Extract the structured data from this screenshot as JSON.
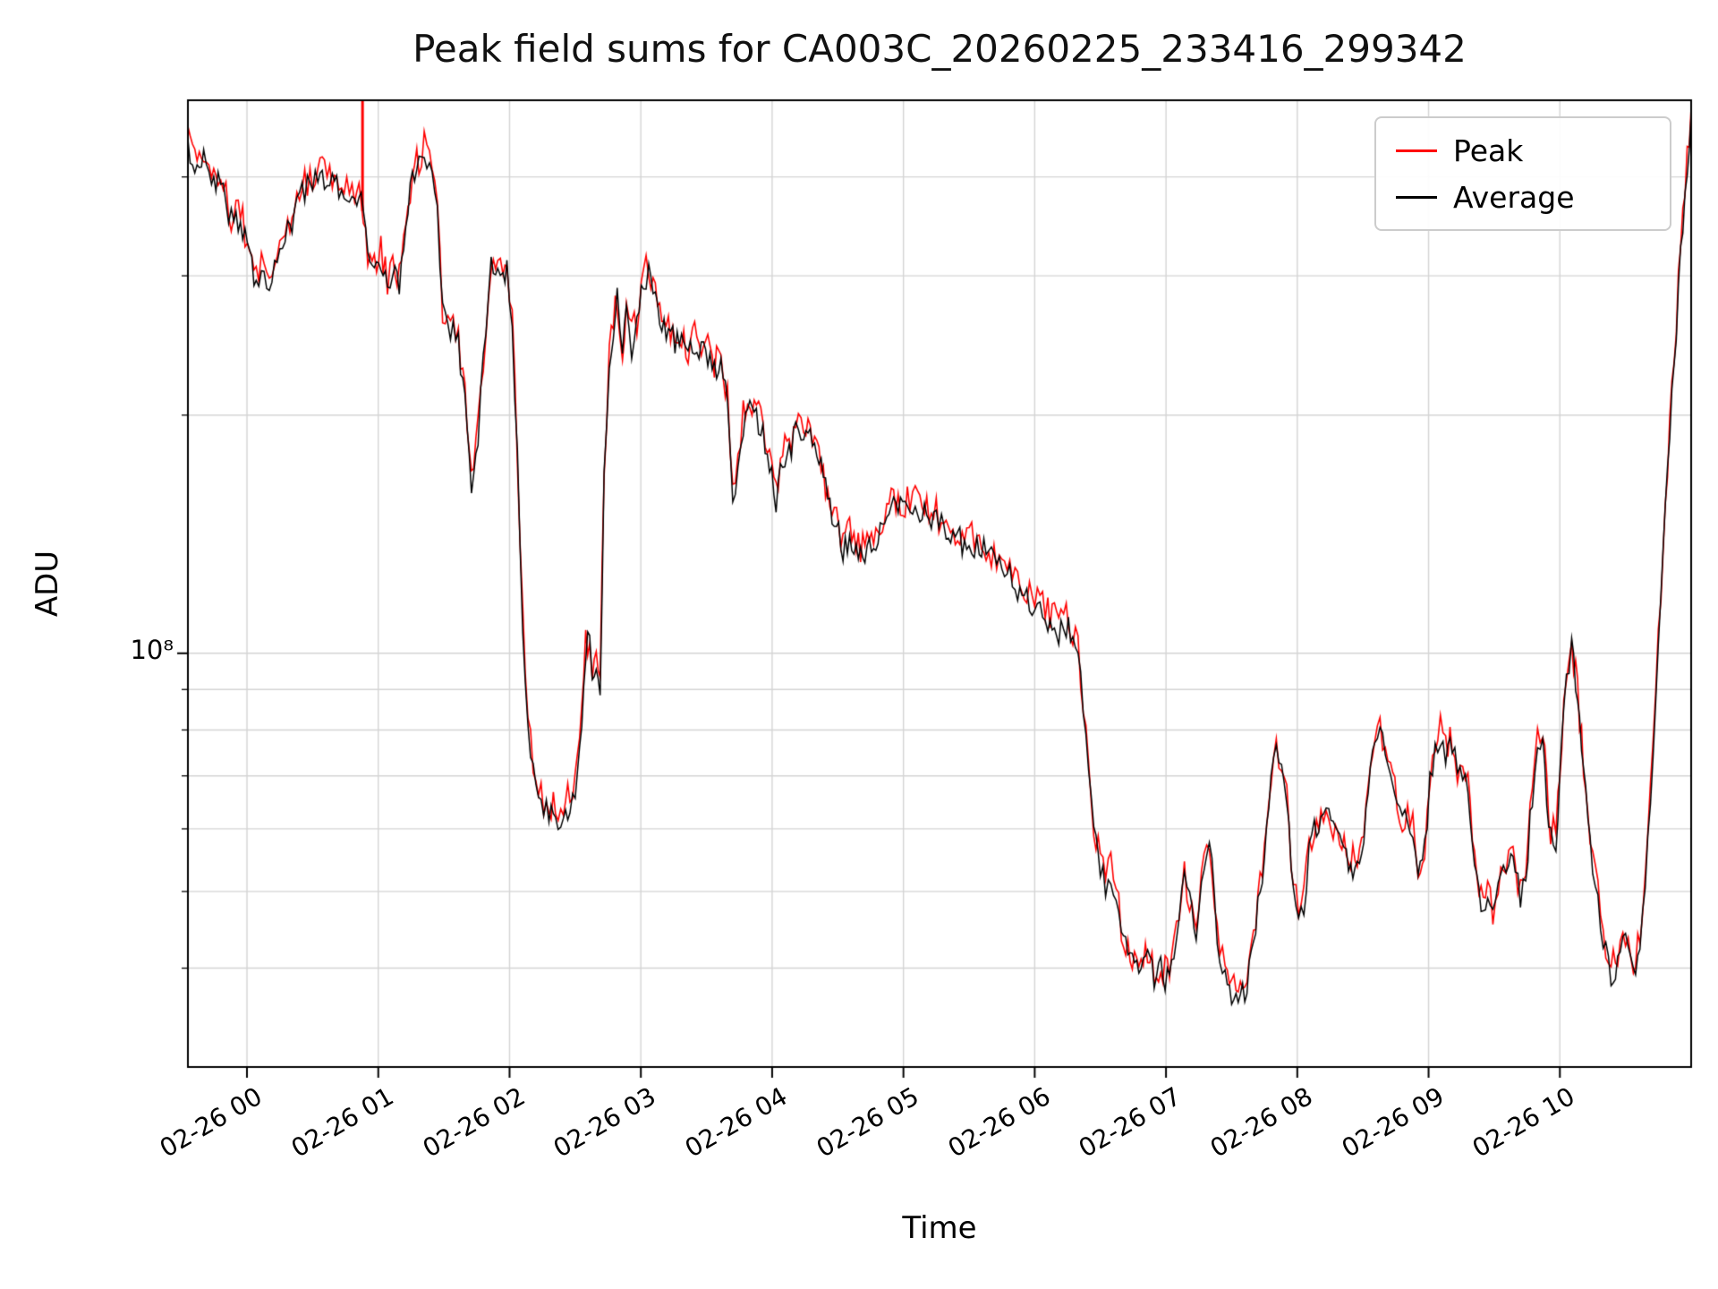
{
  "title": "Peak field sums for CA003C_20260225_233416_299342",
  "axes": {
    "x_label": "Time",
    "y_label": "ADU",
    "y_tick_label": "10⁸"
  },
  "legend": {
    "position": "upper right",
    "items": [
      {
        "label": "Peak",
        "color": "#ff0000"
      },
      {
        "label": "Average",
        "color": "#000000"
      }
    ]
  },
  "chart_data": {
    "type": "line",
    "title": "Peak field sums for CA003C_20260225_233416_299342",
    "xlabel": "Time",
    "ylabel": "ADU",
    "y_scale": "log",
    "ylim": [
      30000000.0,
      500000000.0
    ],
    "xlim_hours": [
      -0.45,
      11.0
    ],
    "x_axis_note": "hours relative to 2026-02-26 00:00",
    "x_tick_hours": [
      0,
      1,
      2,
      3,
      4,
      5,
      6,
      7,
      8,
      9,
      10
    ],
    "x_tick_labels": [
      "02-26 00",
      "02-26 01",
      "02-26 02",
      "02-26 03",
      "02-26 04",
      "02-26 05",
      "02-26 06",
      "02-26 07",
      "02-26 08",
      "02-26 09",
      "02-26 10"
    ],
    "y_tick_labels": [
      {
        "value": 100000000.0,
        "label": "10⁸"
      }
    ],
    "grid": true,
    "grid_color": "#d4d4d4",
    "grid_y_values": [
      40000000.0,
      50000000.0,
      60000000.0,
      70000000.0,
      80000000.0,
      90000000.0,
      100000000.0,
      200000000.0,
      300000000.0,
      400000000.0
    ],
    "legend_position": "upper right",
    "noise": {
      "amplitude_ratio": 0.04,
      "note": "high-frequency jitter visible on both traces"
    },
    "series": [
      {
        "name": "Peak",
        "color": "#ff0000",
        "derived": "Average values times multiplier (traces nearly overlap, red slightly above)",
        "multiplier": 1.02,
        "spike": {
          "x_hours": 0.88,
          "y": 500000000.0
        }
      },
      {
        "name": "Average",
        "color": "#000000",
        "points": [
          [
            -0.45,
            440000000.0
          ],
          [
            -0.38,
            410000000.0
          ],
          [
            -0.33,
            425000000.0
          ],
          [
            -0.27,
            385000000.0
          ],
          [
            -0.22,
            400000000.0
          ],
          [
            -0.16,
            370000000.0
          ],
          [
            -0.1,
            345000000.0
          ],
          [
            -0.05,
            355000000.0
          ],
          [
            0.02,
            320000000.0
          ],
          [
            0.07,
            295000000.0
          ],
          [
            0.11,
            310000000.0
          ],
          [
            0.15,
            290000000.0
          ],
          [
            0.19,
            305000000.0
          ],
          [
            0.25,
            320000000.0
          ],
          [
            0.31,
            340000000.0
          ],
          [
            0.36,
            355000000.0
          ],
          [
            0.42,
            380000000.0
          ],
          [
            0.48,
            390000000.0
          ],
          [
            0.54,
            400000000.0
          ],
          [
            0.59,
            395000000.0
          ],
          [
            0.65,
            400000000.0
          ],
          [
            0.7,
            385000000.0
          ],
          [
            0.76,
            385000000.0
          ],
          [
            0.82,
            370000000.0
          ],
          [
            0.87,
            375000000.0
          ],
          [
            0.92,
            315000000.0
          ],
          [
            0.97,
            300000000.0
          ],
          [
            1.02,
            315000000.0
          ],
          [
            1.07,
            290000000.0
          ],
          [
            1.11,
            305000000.0
          ],
          [
            1.16,
            295000000.0
          ],
          [
            1.21,
            340000000.0
          ],
          [
            1.26,
            405000000.0
          ],
          [
            1.31,
            415000000.0
          ],
          [
            1.35,
            430000000.0
          ],
          [
            1.39,
            410000000.0
          ],
          [
            1.45,
            370000000.0
          ],
          [
            1.49,
            270000000.0
          ],
          [
            1.53,
            255000000.0
          ],
          [
            1.57,
            260000000.0
          ],
          [
            1.61,
            245000000.0
          ],
          [
            1.66,
            210000000.0
          ],
          [
            1.71,
            165000000.0
          ],
          [
            1.76,
            190000000.0
          ],
          [
            1.82,
            260000000.0
          ],
          [
            1.86,
            305000000.0
          ],
          [
            1.91,
            315000000.0
          ],
          [
            1.95,
            300000000.0
          ],
          [
            1.98,
            310000000.0
          ],
          [
            2.02,
            260000000.0
          ],
          [
            2.06,
            175000000.0
          ],
          [
            2.1,
            110000000.0
          ],
          [
            2.14,
            82000000.0
          ],
          [
            2.18,
            70000000.0
          ],
          [
            2.24,
            65000000.0
          ],
          [
            2.3,
            63000000.0
          ],
          [
            2.35,
            62000000.0
          ],
          [
            2.41,
            63000000.0
          ],
          [
            2.46,
            64500000.0
          ],
          [
            2.5,
            67000000.0
          ],
          [
            2.55,
            82000000.0
          ],
          [
            2.58,
            100000000.0
          ],
          [
            2.61,
            105000000.0
          ],
          [
            2.63,
            92000000.0
          ],
          [
            2.66,
            97000000.0
          ],
          [
            2.69,
            91000000.0
          ],
          [
            2.72,
            165000000.0
          ],
          [
            2.76,
            230000000.0
          ],
          [
            2.79,
            255000000.0
          ],
          [
            2.82,
            280000000.0
          ],
          [
            2.86,
            240000000.0
          ],
          [
            2.89,
            265000000.0
          ],
          [
            2.93,
            245000000.0
          ],
          [
            2.97,
            260000000.0
          ],
          [
            3.02,
            295000000.0
          ],
          [
            3.06,
            300000000.0
          ],
          [
            3.11,
            280000000.0
          ],
          [
            3.16,
            255000000.0
          ],
          [
            3.21,
            260000000.0
          ],
          [
            3.26,
            245000000.0
          ],
          [
            3.31,
            250000000.0
          ],
          [
            3.36,
            240000000.0
          ],
          [
            3.41,
            245000000.0
          ],
          [
            3.46,
            240000000.0
          ],
          [
            3.51,
            240000000.0
          ],
          [
            3.56,
            230000000.0
          ],
          [
            3.61,
            228000000.0
          ],
          [
            3.66,
            210000000.0
          ],
          [
            3.7,
            155000000.0
          ],
          [
            3.74,
            175000000.0
          ],
          [
            3.78,
            195000000.0
          ],
          [
            3.83,
            205000000.0
          ],
          [
            3.88,
            200000000.0
          ],
          [
            3.93,
            190000000.0
          ],
          [
            3.98,
            175000000.0
          ],
          [
            4.03,
            155000000.0
          ],
          [
            4.08,
            175000000.0
          ],
          [
            4.13,
            180000000.0
          ],
          [
            4.18,
            190000000.0
          ],
          [
            4.24,
            185000000.0
          ],
          [
            4.29,
            190000000.0
          ],
          [
            4.34,
            180000000.0
          ],
          [
            4.39,
            165000000.0
          ],
          [
            4.44,
            155000000.0
          ],
          [
            4.49,
            145000000.0
          ],
          [
            4.54,
            135000000.0
          ],
          [
            4.59,
            140000000.0
          ],
          [
            4.64,
            138000000.0
          ],
          [
            4.69,
            133000000.0
          ],
          [
            4.74,
            138000000.0
          ],
          [
            4.79,
            136000000.0
          ],
          [
            4.84,
            145000000.0
          ],
          [
            4.89,
            152000000.0
          ],
          [
            4.96,
            155000000.0
          ],
          [
            5.03,
            152000000.0
          ],
          [
            5.09,
            153000000.0
          ],
          [
            5.16,
            150000000.0
          ],
          [
            5.23,
            148000000.0
          ],
          [
            5.29,
            146000000.0
          ],
          [
            5.36,
            142000000.0
          ],
          [
            5.43,
            139000000.0
          ],
          [
            5.5,
            137000000.0
          ],
          [
            5.56,
            136000000.0
          ],
          [
            5.63,
            135000000.0
          ],
          [
            5.69,
            131000000.0
          ],
          [
            5.75,
            128000000.0
          ],
          [
            5.81,
            125000000.0
          ],
          [
            5.87,
            121000000.0
          ],
          [
            5.92,
            117000000.0
          ],
          [
            5.98,
            115000000.0
          ],
          [
            6.04,
            113000000.0
          ],
          [
            6.1,
            110000000.0
          ],
          [
            6.15,
            108000000.0
          ],
          [
            6.2,
            106000000.0
          ],
          [
            6.24,
            109000000.0
          ],
          [
            6.29,
            105000000.0
          ],
          [
            6.33,
            100000000.0
          ],
          [
            6.37,
            86000000.0
          ],
          [
            6.41,
            70000000.0
          ],
          [
            6.45,
            59000000.0
          ],
          [
            6.5,
            53000000.0
          ],
          [
            6.54,
            51000000.0
          ],
          [
            6.58,
            53000000.0
          ],
          [
            6.62,
            49000000.0
          ],
          [
            6.66,
            44000000.0
          ],
          [
            6.71,
            41500000.0
          ],
          [
            6.76,
            40000000.0
          ],
          [
            6.81,
            39000000.0
          ],
          [
            6.86,
            41000000.0
          ],
          [
            6.91,
            39000000.0
          ],
          [
            6.96,
            40000000.0
          ],
          [
            7.01,
            38500000.0
          ],
          [
            7.06,
            41000000.0
          ],
          [
            7.1,
            46000000.0
          ],
          [
            7.14,
            51000000.0
          ],
          [
            7.18,
            48500000.0
          ],
          [
            7.23,
            43000000.0
          ],
          [
            7.27,
            51000000.0
          ],
          [
            7.31,
            57500000.0
          ],
          [
            7.35,
            54000000.0
          ],
          [
            7.39,
            43000000.0
          ],
          [
            7.45,
            38500000.0
          ],
          [
            7.5,
            37000000.0
          ],
          [
            7.55,
            36400000.0
          ],
          [
            7.6,
            37200000.0
          ],
          [
            7.65,
            41000000.0
          ],
          [
            7.7,
            48000000.0
          ],
          [
            7.75,
            54000000.0
          ],
          [
            7.8,
            68500000.0
          ],
          [
            7.84,
            74000000.0
          ],
          [
            7.88,
            72000000.0
          ],
          [
            7.92,
            64000000.0
          ],
          [
            7.97,
            51000000.0
          ],
          [
            8.01,
            45000000.0
          ],
          [
            8.05,
            48000000.0
          ],
          [
            8.09,
            56000000.0
          ],
          [
            8.13,
            60000000.0
          ],
          [
            8.18,
            61000000.0
          ],
          [
            8.24,
            62500000.0
          ],
          [
            8.29,
            59000000.0
          ],
          [
            8.34,
            57500000.0
          ],
          [
            8.39,
            55000000.0
          ],
          [
            8.44,
            53000000.0
          ],
          [
            8.49,
            55000000.0
          ],
          [
            8.54,
            66000000.0
          ],
          [
            8.59,
            76500000.0
          ],
          [
            8.63,
            79000000.0
          ],
          [
            8.67,
            74000000.0
          ],
          [
            8.71,
            70000000.0
          ],
          [
            8.76,
            64000000.0
          ],
          [
            8.8,
            61000000.0
          ],
          [
            8.84,
            63000000.0
          ],
          [
            8.88,
            59000000.0
          ],
          [
            8.92,
            53000000.0
          ],
          [
            8.97,
            56000000.0
          ],
          [
            9.01,
            68500000.0
          ],
          [
            9.05,
            76500000.0
          ],
          [
            9.09,
            79000000.0
          ],
          [
            9.13,
            75000000.0
          ],
          [
            9.18,
            76500000.0
          ],
          [
            9.22,
            70000000.0
          ],
          [
            9.26,
            71500000.0
          ],
          [
            9.3,
            68500000.0
          ],
          [
            9.35,
            54000000.0
          ],
          [
            9.4,
            48500000.0
          ],
          [
            9.45,
            49500000.0
          ],
          [
            9.49,
            46500000.0
          ],
          [
            9.53,
            50000000.0
          ],
          [
            9.57,
            52000000.0
          ],
          [
            9.61,
            56000000.0
          ],
          [
            9.66,
            53500000.0
          ],
          [
            9.7,
            49000000.0
          ],
          [
            9.74,
            52500000.0
          ],
          [
            9.79,
            66000000.0
          ],
          [
            9.83,
            75000000.0
          ],
          [
            9.87,
            80000000.0
          ],
          [
            9.9,
            66000000.0
          ],
          [
            9.93,
            59000000.0
          ],
          [
            9.97,
            58000000.0
          ],
          [
            10.0,
            70000000.0
          ],
          [
            10.03,
            86000000.0
          ],
          [
            10.07,
            97000000.0
          ],
          [
            10.09,
            102000000.0
          ],
          [
            10.12,
            92000000.0
          ],
          [
            10.15,
            82000000.0
          ],
          [
            10.18,
            70000000.0
          ],
          [
            10.23,
            58000000.0
          ],
          [
            10.27,
            51000000.0
          ],
          [
            10.31,
            45500000.0
          ],
          [
            10.35,
            41500000.0
          ],
          [
            10.39,
            39000000.0
          ],
          [
            10.44,
            41000000.0
          ],
          [
            10.48,
            43300000.0
          ],
          [
            10.52,
            42000000.0
          ],
          [
            10.56,
            39000000.0
          ],
          [
            10.61,
            44000000.0
          ],
          [
            10.65,
            51000000.0
          ],
          [
            10.69,
            66000000.0
          ],
          [
            10.73,
            86000000.0
          ],
          [
            10.77,
            117000000.0
          ],
          [
            10.82,
            167000000.0
          ],
          [
            10.87,
            231000000.0
          ],
          [
            10.92,
            319000000.0
          ],
          [
            10.97,
            412000000.0
          ],
          [
            11.0,
            480000000.0
          ]
        ]
      }
    ]
  }
}
